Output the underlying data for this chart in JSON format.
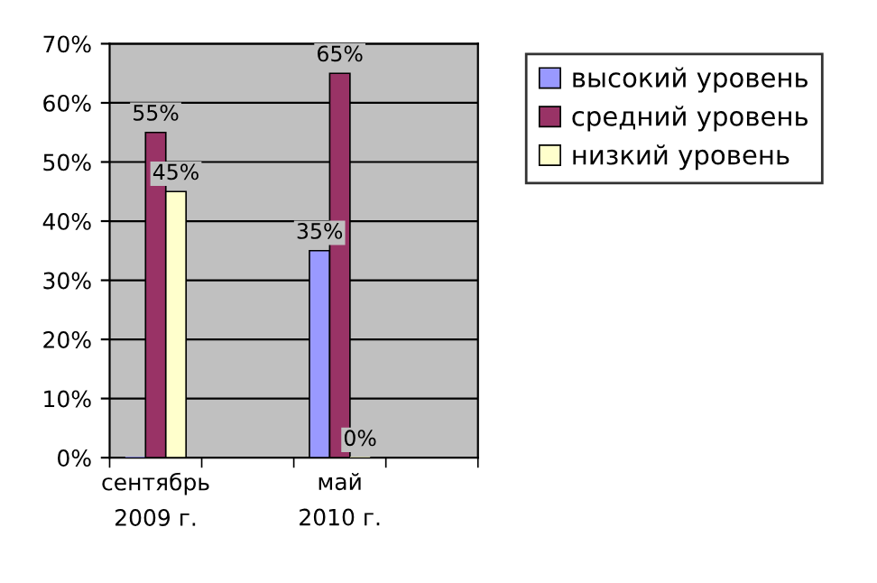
{
  "chart_data": {
    "type": "bar",
    "categories": [
      "сентябрь\n2009 г.",
      null,
      "май\n2010 г.",
      null
    ],
    "series": [
      {
        "name": "высокий уровень",
        "color": "#9999ff",
        "values": [
          0,
          null,
          35,
          null
        ],
        "value_labels": [
          null,
          null,
          "35%",
          null
        ]
      },
      {
        "name": "средний уровень",
        "color": "#993366",
        "values": [
          55,
          null,
          65,
          null
        ],
        "value_labels": [
          "55%",
          null,
          "65%",
          null
        ]
      },
      {
        "name": "низкий уровень",
        "color": "#ffffcc",
        "values": [
          45,
          null,
          0,
          null
        ],
        "value_labels": [
          "45%",
          null,
          "0%",
          null
        ]
      }
    ],
    "ylim": [
      0,
      70
    ],
    "yticks": [
      {
        "value": 0,
        "label": "0%"
      },
      {
        "value": 10,
        "label": "10%"
      },
      {
        "value": 20,
        "label": "20%"
      },
      {
        "value": 30,
        "label": "30%"
      },
      {
        "value": 40,
        "label": "40%"
      },
      {
        "value": 50,
        "label": "50%"
      },
      {
        "value": 60,
        "label": "60%"
      },
      {
        "value": 70,
        "label": "70%"
      }
    ],
    "grid": "y",
    "legend": "top right"
  }
}
